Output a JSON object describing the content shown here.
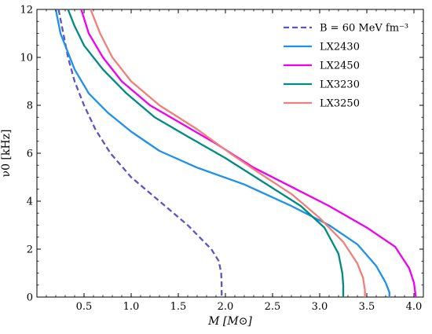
{
  "chart_data": {
    "type": "line",
    "xlabel": "M [M⊙]",
    "ylabel": "ν0 [kHz]",
    "xlim": [
      0.0,
      4.1
    ],
    "ylim": [
      0,
      12
    ],
    "x_ticks": [
      0.5,
      1.0,
      1.5,
      2.0,
      2.5,
      3.0,
      3.5,
      4.0
    ],
    "x_tick_labels": [
      "0.5",
      "1.0",
      "1.5",
      "2.0",
      "2.5",
      "3.0",
      "3.5",
      "4.0"
    ],
    "y_ticks": [
      0,
      2,
      4,
      6,
      8,
      10,
      12
    ],
    "y_tick_labels": [
      "0",
      "2",
      "4",
      "6",
      "8",
      "10",
      "12"
    ],
    "grid": false,
    "legend_position": "top-right",
    "series": [
      {
        "name": "B = 60 MeV fm⁻³",
        "color": "#5a55c4",
        "dash": "dashed",
        "points": [
          [
            0.23,
            12.0
          ],
          [
            0.28,
            11.0
          ],
          [
            0.33,
            10.0
          ],
          [
            0.4,
            9.0
          ],
          [
            0.5,
            8.0
          ],
          [
            0.62,
            7.0
          ],
          [
            0.78,
            6.0
          ],
          [
            1.0,
            5.0
          ],
          [
            1.3,
            4.0
          ],
          [
            1.6,
            3.0
          ],
          [
            1.85,
            2.0
          ],
          [
            1.93,
            1.5
          ],
          [
            1.955,
            1.0
          ],
          [
            1.96,
            0.5
          ],
          [
            1.96,
            0.0
          ]
        ]
      },
      {
        "name": "LX2430",
        "color": "#1e90ee",
        "dash": "solid",
        "points": [
          [
            0.2,
            12.0
          ],
          [
            0.25,
            11.0
          ],
          [
            0.3,
            10.5
          ],
          [
            0.4,
            9.5
          ],
          [
            0.55,
            8.5
          ],
          [
            0.75,
            7.7
          ],
          [
            1.0,
            6.9
          ],
          [
            1.3,
            6.1
          ],
          [
            1.7,
            5.4
          ],
          [
            2.2,
            4.7
          ],
          [
            2.7,
            3.8
          ],
          [
            3.1,
            3.0
          ],
          [
            3.4,
            2.2
          ],
          [
            3.6,
            1.3
          ],
          [
            3.7,
            0.6
          ],
          [
            3.74,
            0.2
          ],
          [
            3.74,
            0.0
          ]
        ]
      },
      {
        "name": "LX2450",
        "color": "#f000f0",
        "dash": "solid",
        "points": [
          [
            0.47,
            12.0
          ],
          [
            0.55,
            11.0
          ],
          [
            0.7,
            10.0
          ],
          [
            0.9,
            9.0
          ],
          [
            1.2,
            8.0
          ],
          [
            1.55,
            7.2
          ],
          [
            1.9,
            6.4
          ],
          [
            2.3,
            5.4
          ],
          [
            2.7,
            4.6
          ],
          [
            3.1,
            3.8
          ],
          [
            3.5,
            2.9
          ],
          [
            3.8,
            2.1
          ],
          [
            3.95,
            1.2
          ],
          [
            4.0,
            0.6
          ],
          [
            4.02,
            0.0
          ]
        ]
      },
      {
        "name": "LX3230",
        "color": "#008b82",
        "dash": "solid",
        "points": [
          [
            0.33,
            12.0
          ],
          [
            0.4,
            11.3
          ],
          [
            0.5,
            10.5
          ],
          [
            0.7,
            9.5
          ],
          [
            0.95,
            8.5
          ],
          [
            1.25,
            7.5
          ],
          [
            1.6,
            6.7
          ],
          [
            2.0,
            5.8
          ],
          [
            2.4,
            4.8
          ],
          [
            2.8,
            3.8
          ],
          [
            3.05,
            2.9
          ],
          [
            3.2,
            1.8
          ],
          [
            3.24,
            1.0
          ],
          [
            3.25,
            0.5
          ],
          [
            3.25,
            0.0
          ]
        ]
      },
      {
        "name": "LX3250",
        "color": "#f07f7a",
        "dash": "solid",
        "points": [
          [
            0.57,
            12.0
          ],
          [
            0.67,
            11.0
          ],
          [
            0.8,
            10.0
          ],
          [
            1.0,
            9.0
          ],
          [
            1.3,
            8.0
          ],
          [
            1.7,
            7.0
          ],
          [
            2.05,
            6.0
          ],
          [
            2.35,
            5.2
          ],
          [
            2.7,
            4.3
          ],
          [
            3.0,
            3.3
          ],
          [
            3.25,
            2.3
          ],
          [
            3.4,
            1.4
          ],
          [
            3.46,
            0.8
          ],
          [
            3.48,
            0.3
          ],
          [
            3.48,
            0.0
          ]
        ]
      }
    ]
  }
}
